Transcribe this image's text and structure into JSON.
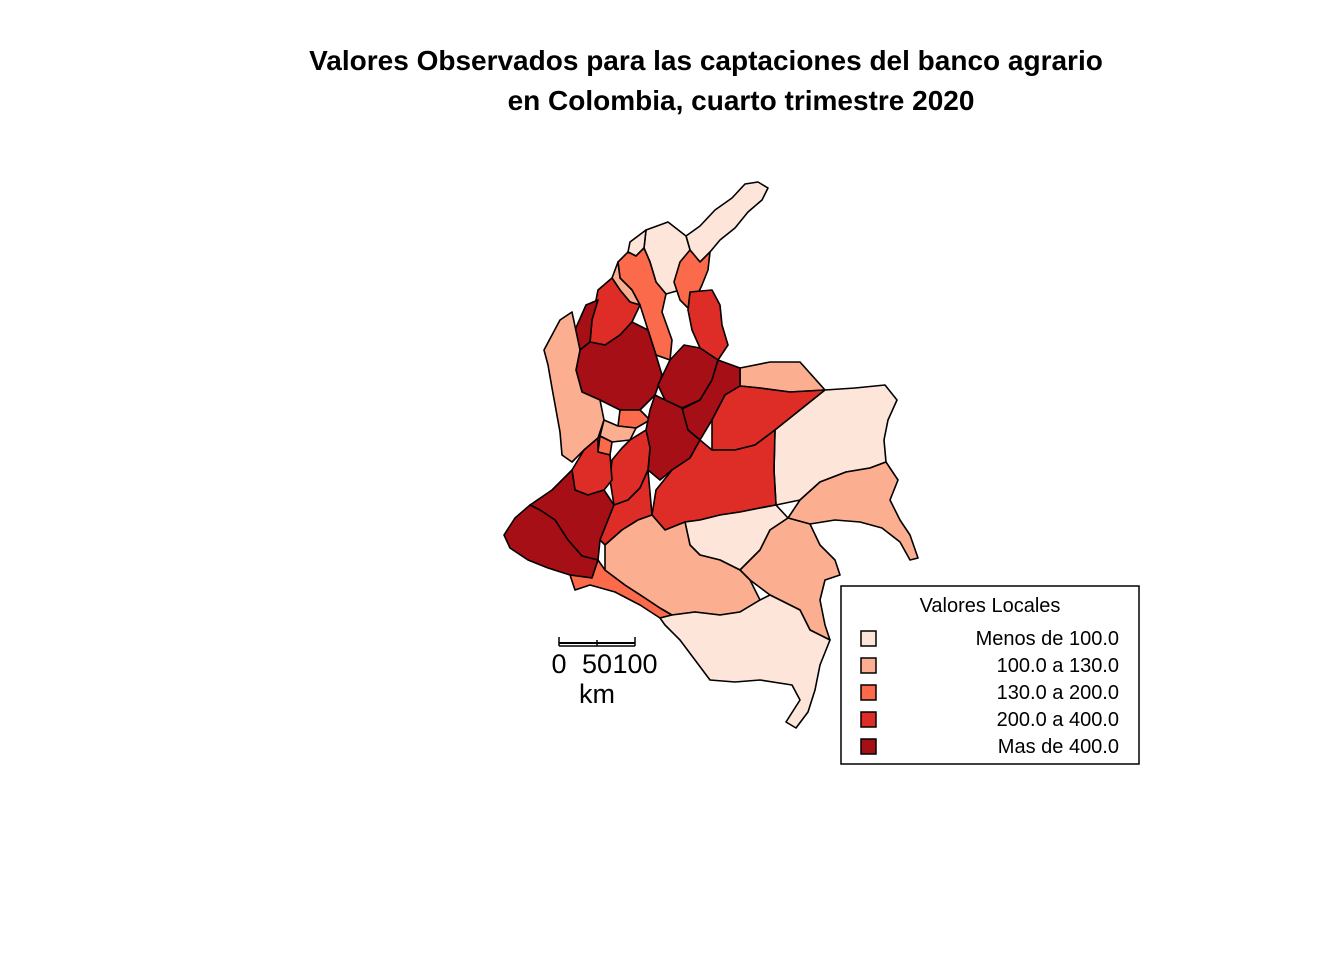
{
  "title": {
    "line1": "Valores Observados para las captaciones del banco agrario",
    "line2": "en Colombia, cuarto trimestre 2020"
  },
  "legend": {
    "title": "Valores Locales",
    "items": [
      {
        "label": "Menos de 100.0",
        "color": "#fee5d9"
      },
      {
        "label": "100.0 a 130.0",
        "color": "#fcae91"
      },
      {
        "label": "130.0 a 200.0",
        "color": "#fb6a4a"
      },
      {
        "label": "200.0 a 400.0",
        "color": "#de2d26"
      },
      {
        "label": "Mas de 400.0",
        "color": "#a50f15"
      }
    ]
  },
  "scale_bar": {
    "ticks": [
      "0",
      "50",
      "100"
    ],
    "unit": "km"
  },
  "map": {
    "departments": [
      {
        "id": "la-guajira",
        "class": 0
      },
      {
        "id": "magdalena",
        "class": 0
      },
      {
        "id": "atlantico",
        "class": 0
      },
      {
        "id": "cesar",
        "class": 2
      },
      {
        "id": "bolivar",
        "class": 2
      },
      {
        "id": "sucre",
        "class": 1
      },
      {
        "id": "cordoba",
        "class": 3
      },
      {
        "id": "uraba-antioquia",
        "class": 4
      },
      {
        "id": "norte-de-santander",
        "class": 3
      },
      {
        "id": "antioquia",
        "class": 4
      },
      {
        "id": "santander",
        "class": 4
      },
      {
        "id": "choco",
        "class": 1
      },
      {
        "id": "arauca",
        "class": 1
      },
      {
        "id": "boyaca",
        "class": 4
      },
      {
        "id": "casanare",
        "class": 3
      },
      {
        "id": "vichada",
        "class": 0
      },
      {
        "id": "caldas",
        "class": 2
      },
      {
        "id": "risaralda",
        "class": 1
      },
      {
        "id": "cundinamarca",
        "class": 4
      },
      {
        "id": "quindio",
        "class": 2
      },
      {
        "id": "tolima",
        "class": 3
      },
      {
        "id": "valle-del-cauca",
        "class": 3
      },
      {
        "id": "meta",
        "class": 3
      },
      {
        "id": "guainia",
        "class": 1
      },
      {
        "id": "cauca",
        "class": 4
      },
      {
        "id": "huila",
        "class": 3
      },
      {
        "id": "narino",
        "class": 4
      },
      {
        "id": "guaviare",
        "class": 0
      },
      {
        "id": "vaupes",
        "class": 1
      },
      {
        "id": "putumayo",
        "class": 2
      },
      {
        "id": "caqueta",
        "class": 1
      },
      {
        "id": "amazonas",
        "class": 0
      }
    ]
  }
}
